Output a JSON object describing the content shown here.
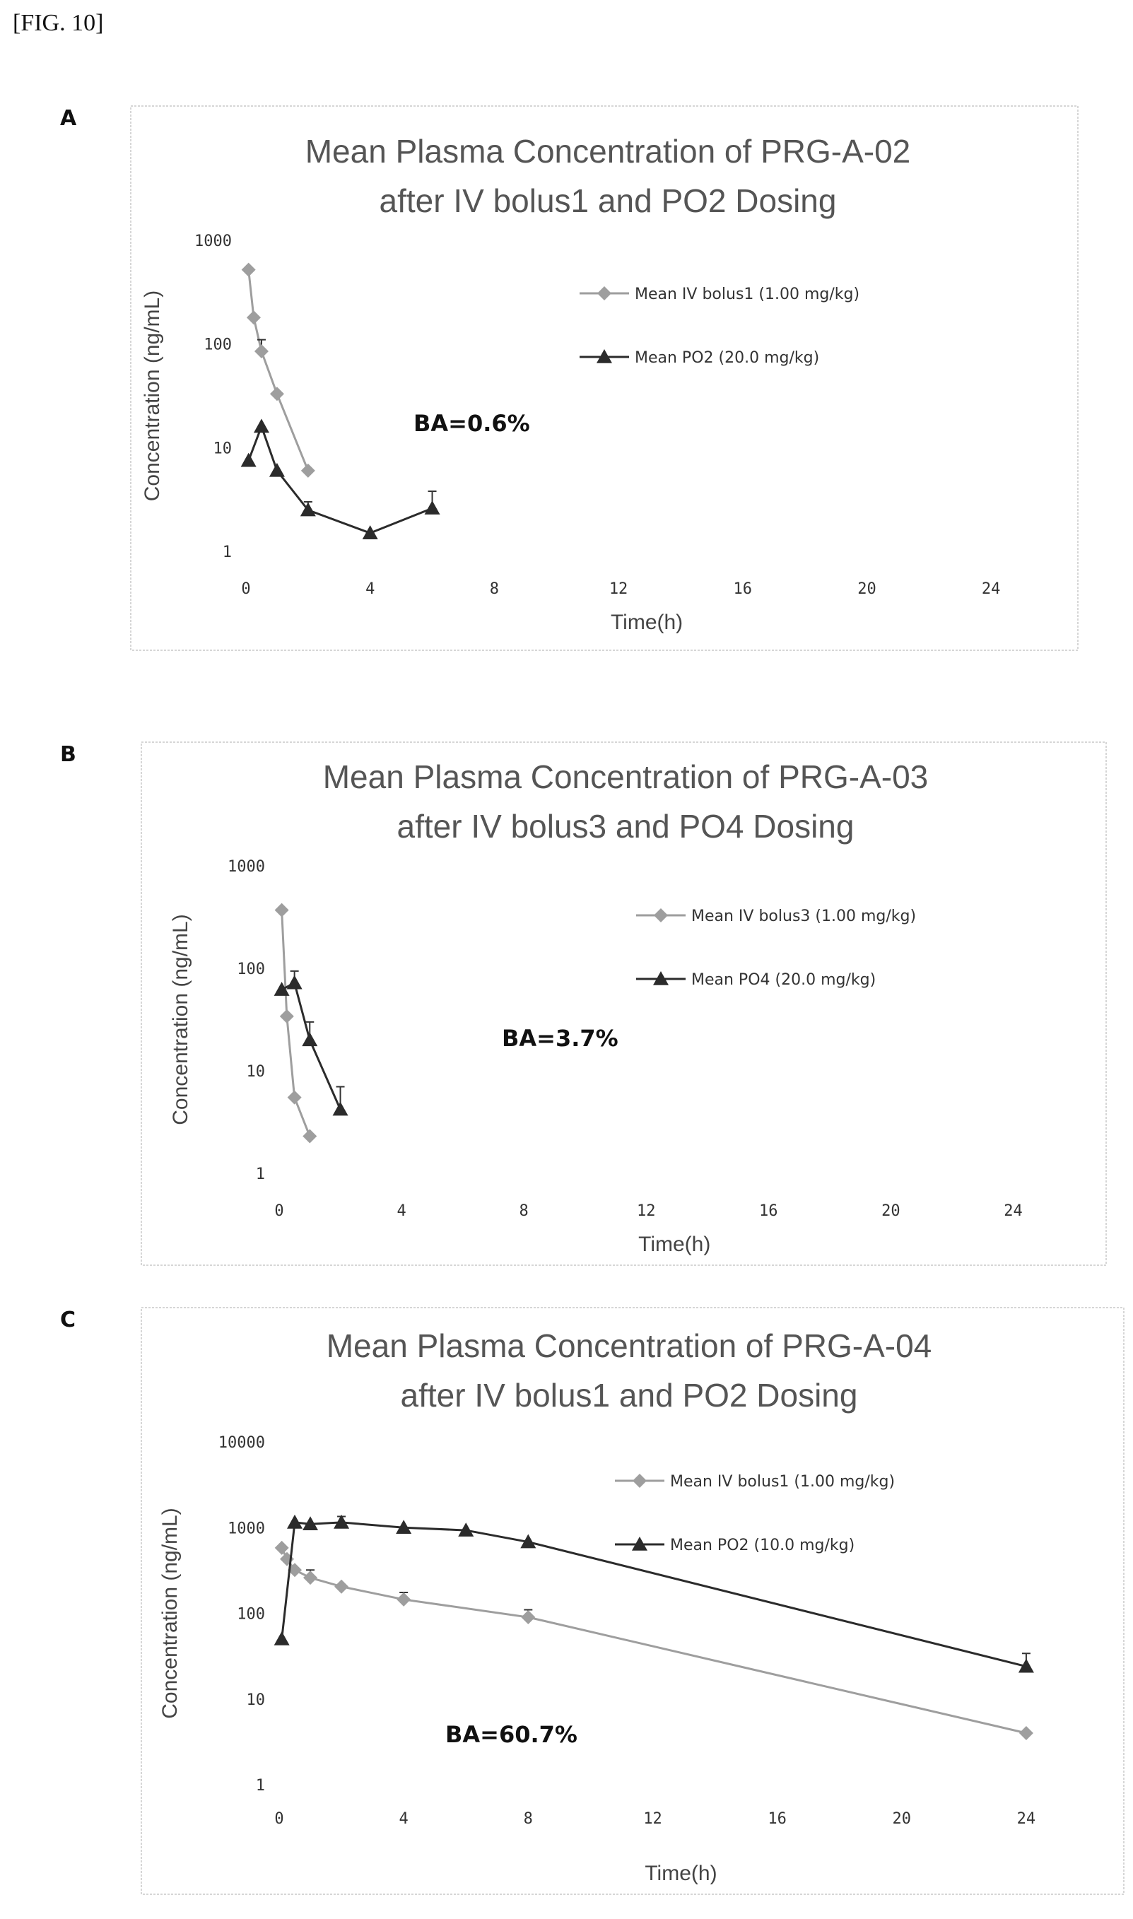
{
  "figure_label": "[FIG. 10]",
  "panels": [
    {
      "letter": "A",
      "chart_data": {
        "type": "line",
        "title_lines": [
          "Mean Plasma Concentration of PRG-A-02",
          "after IV bolus1 and PO2 Dosing"
        ],
        "xlabel": "Time(h)",
        "ylabel": "Concentration (ng/mL)",
        "yscale": "log",
        "xlim": [
          0,
          26
        ],
        "ylim": [
          1,
          1000
        ],
        "xticks": [
          "0",
          "4",
          "8",
          "12",
          "16",
          "20",
          "24"
        ],
        "yticks": [
          "1",
          "10",
          "100",
          "1000"
        ],
        "annotation": "BA=0.6%",
        "legend_position": "right",
        "series": [
          {
            "name": "Mean IV bolus1 (1.00 mg/kg)",
            "marker": "diamond",
            "color": "#9e9e9e",
            "x": [
              0.083,
              0.25,
              0.5,
              1,
              2
            ],
            "y": [
              520,
              180,
              85,
              33,
              6
            ],
            "err": [
              0,
              0,
              25,
              0,
              0
            ]
          },
          {
            "name": "Mean PO2 (20.0 mg/kg)",
            "marker": "triangle",
            "color": "#2b2b2b",
            "x": [
              0.083,
              0.5,
              1,
              2,
              4,
              6
            ],
            "y": [
              7.5,
              16,
              6,
              2.5,
              1.5,
              2.6
            ],
            "err": [
              0,
              0,
              0,
              0.5,
              0,
              1.2
            ]
          }
        ]
      }
    },
    {
      "letter": "B",
      "chart_data": {
        "type": "line",
        "title_lines": [
          "Mean Plasma Concentration of PRG-A-03",
          "after IV bolus3 and PO4 Dosing"
        ],
        "xlabel": "Time(h)",
        "ylabel": "Concentration (ng/mL)",
        "yscale": "log",
        "xlim": [
          0,
          26
        ],
        "ylim": [
          1,
          1000
        ],
        "xticks": [
          "0",
          "4",
          "8",
          "12",
          "16",
          "20",
          "24"
        ],
        "yticks": [
          "1",
          "10",
          "100",
          "1000"
        ],
        "annotation": "BA=3.7%",
        "legend_position": "right",
        "series": [
          {
            "name": "Mean IV bolus3 (1.00 mg/kg)",
            "marker": "diamond",
            "color": "#9e9e9e",
            "x": [
              0.083,
              0.25,
              0.5,
              1
            ],
            "y": [
              370,
              34,
              5.5,
              2.3
            ],
            "err": [
              0,
              0,
              0,
              0
            ]
          },
          {
            "name": "Mean PO4 (20.0 mg/kg)",
            "marker": "triangle",
            "color": "#2b2b2b",
            "x": [
              0.083,
              0.5,
              1,
              2
            ],
            "y": [
              62,
              72,
              20,
              4.2
            ],
            "err": [
              0,
              22,
              10,
              2.8
            ]
          }
        ]
      }
    },
    {
      "letter": "C",
      "chart_data": {
        "type": "line",
        "title_lines": [
          "Mean Plasma Concentration of PRG-A-04",
          "after IV bolus1 and PO2 Dosing"
        ],
        "xlabel": "Time(h)",
        "ylabel": "Concentration (ng/mL)",
        "yscale": "log",
        "xlim": [
          0,
          26
        ],
        "ylim": [
          1,
          10000
        ],
        "xticks": [
          "0",
          "4",
          "8",
          "12",
          "16",
          "20",
          "24"
        ],
        "yticks": [
          "1",
          "10",
          "100",
          "1000",
          "10000"
        ],
        "annotation": "BA=60.7%",
        "legend_position": "right",
        "series": [
          {
            "name": "Mean IV bolus1 (1.00 mg/kg)",
            "marker": "diamond",
            "color": "#9e9e9e",
            "x": [
              0.083,
              0.25,
              0.5,
              1,
              2,
              4,
              8,
              24
            ],
            "y": [
              580,
              430,
              320,
              260,
              205,
              145,
              90,
              4
            ],
            "err": [
              0,
              0,
              0,
              60,
              0,
              30,
              20,
              0
            ]
          },
          {
            "name": "Mean PO2 (10.0 mg/kg)",
            "marker": "triangle",
            "color": "#2b2b2b",
            "x": [
              0.083,
              0.5,
              1,
              2,
              4,
              6,
              8,
              24
            ],
            "y": [
              50,
              1150,
              1100,
              1150,
              1000,
              930,
              680,
              24
            ],
            "err": [
              0,
              0,
              0,
              200,
              0,
              0,
              0,
              10
            ]
          }
        ]
      }
    }
  ]
}
